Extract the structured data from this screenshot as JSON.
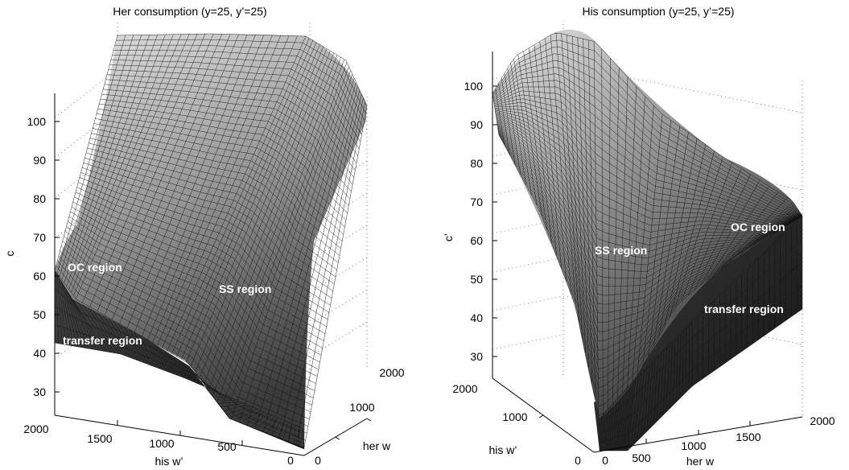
{
  "chart_data": [
    {
      "type": "surface",
      "title": "Her consumption (y=25, y’=25)",
      "zlabel": "c",
      "xlabel": "his w’",
      "ylabel": "her w",
      "z_ticks": [
        "30",
        "40",
        "50",
        "60",
        "70",
        "80",
        "90",
        "100"
      ],
      "x_ticks": [
        "2000",
        "1500",
        "1000",
        "500",
        "0"
      ],
      "y_ticks": [
        "0",
        "1000",
        "2000"
      ],
      "xlim": [
        0,
        2000
      ],
      "ylim": [
        0,
        2000
      ],
      "zlim": [
        25,
        105
      ],
      "regions": [
        "OC region",
        "SS region",
        "transfer region"
      ],
      "grid": true
    },
    {
      "type": "surface",
      "title": "His consumption (y=25, y’=25)",
      "zlabel": "c’",
      "xlabel": "her w",
      "ylabel": "his w’",
      "z_ticks": [
        "30",
        "40",
        "50",
        "60",
        "70",
        "80",
        "90",
        "100"
      ],
      "x_ticks": [
        "0",
        "500",
        "1000",
        "1500",
        "2000"
      ],
      "y_ticks": [
        "2000",
        "1000",
        "0"
      ],
      "xlim": [
        0,
        2000
      ],
      "ylim": [
        0,
        2000
      ],
      "zlim": [
        25,
        105
      ],
      "regions": [
        "OC region",
        "SS region",
        "transfer region"
      ],
      "grid": true
    }
  ],
  "colors": {
    "surface_light": "#e6e6e6",
    "surface_dark": "#1a1a1a",
    "mesh": "#111111"
  }
}
